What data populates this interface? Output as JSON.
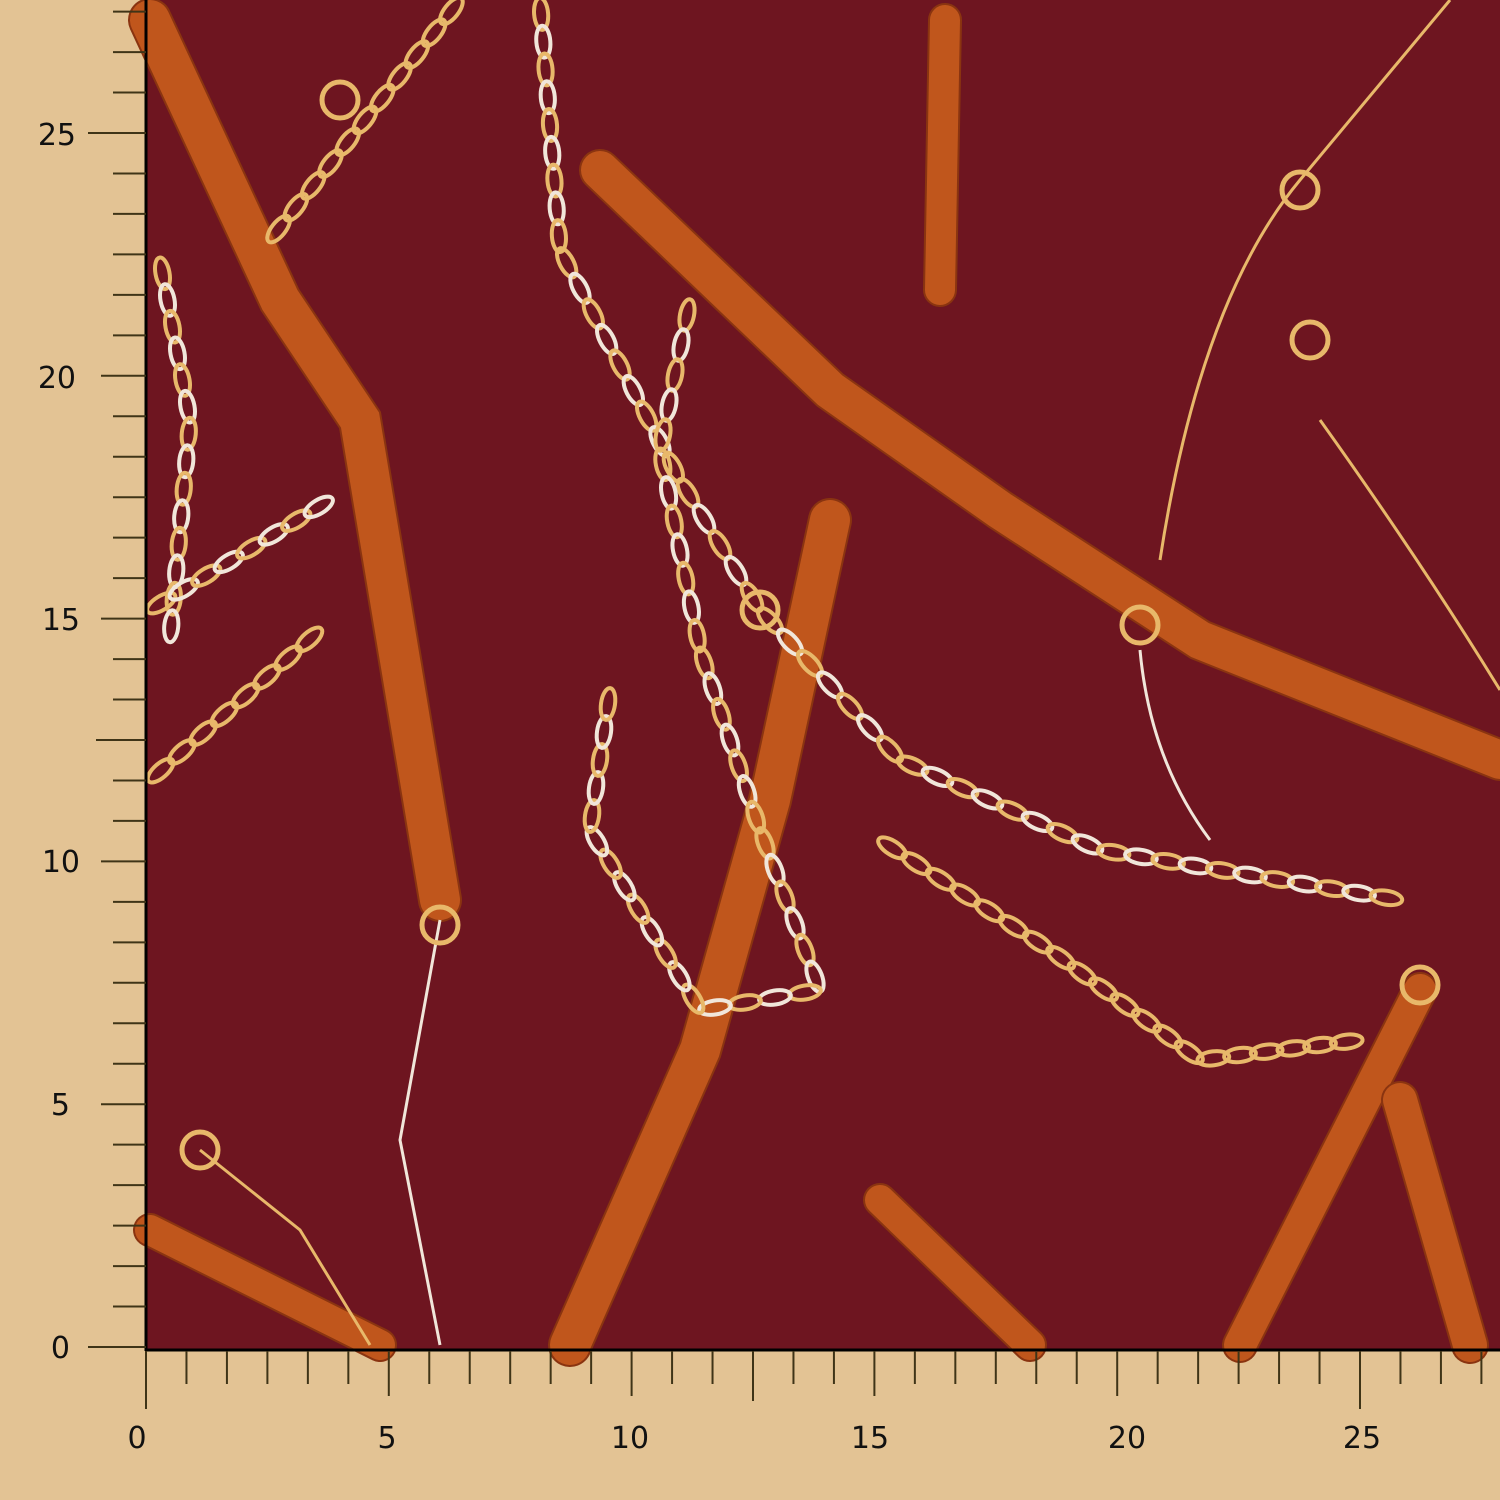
{
  "image": {
    "subject": "fabric-swatch",
    "colors": {
      "background": "#e3c394",
      "fabric": "#6e1520",
      "belt": "#c0561c",
      "belt_dark": "#8a3410",
      "chain_gold": "#e8b86a",
      "chain_silver": "#f1e6da",
      "ruler_ink": "#3f3417"
    }
  },
  "ruler": {
    "horizontal_labels": [
      "0",
      "5",
      "10",
      "15",
      "20",
      "25"
    ],
    "vertical_labels": [
      "0",
      "5",
      "10",
      "15",
      "20",
      "25"
    ],
    "minor_ticks_per_unit": 6
  }
}
